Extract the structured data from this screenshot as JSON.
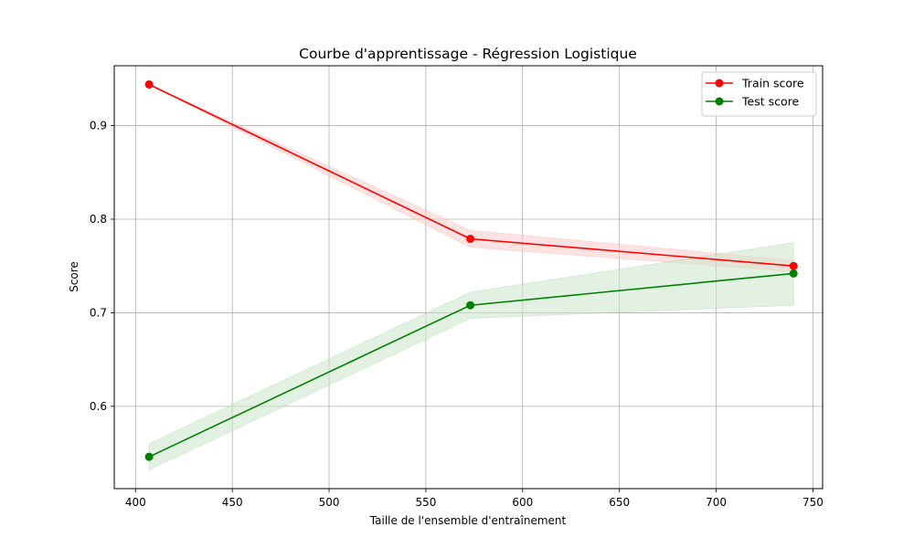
{
  "chart_data": {
    "type": "line",
    "title": "Courbe d'apprentissage - Régression Logistique",
    "xlabel": "Taille de l'ensemble d'entraînement",
    "ylabel": "Score",
    "x": [
      407,
      573,
      740
    ],
    "xlim": [
      389,
      755
    ],
    "ylim": [
      0.512,
      0.964
    ],
    "x_ticks": [
      400,
      450,
      500,
      550,
      600,
      650,
      700,
      750
    ],
    "y_ticks": [
      0.6,
      0.7,
      0.8,
      0.9
    ],
    "grid": true,
    "legend_position": "top-right",
    "series": [
      {
        "name": "Train score",
        "color": "#ff0000",
        "band_color": "#ffcccc",
        "marker": "circle",
        "values": [
          0.944,
          0.779,
          0.75
        ],
        "band_lower": [
          0.944,
          0.77,
          0.744
        ],
        "band_upper": [
          0.944,
          0.788,
          0.756
        ]
      },
      {
        "name": "Test score",
        "color": "#008000",
        "band_color": "#cce6cc",
        "marker": "circle",
        "values": [
          0.546,
          0.708,
          0.742
        ],
        "band_lower": [
          0.532,
          0.694,
          0.708
        ],
        "band_upper": [
          0.56,
          0.722,
          0.775
        ]
      }
    ]
  }
}
